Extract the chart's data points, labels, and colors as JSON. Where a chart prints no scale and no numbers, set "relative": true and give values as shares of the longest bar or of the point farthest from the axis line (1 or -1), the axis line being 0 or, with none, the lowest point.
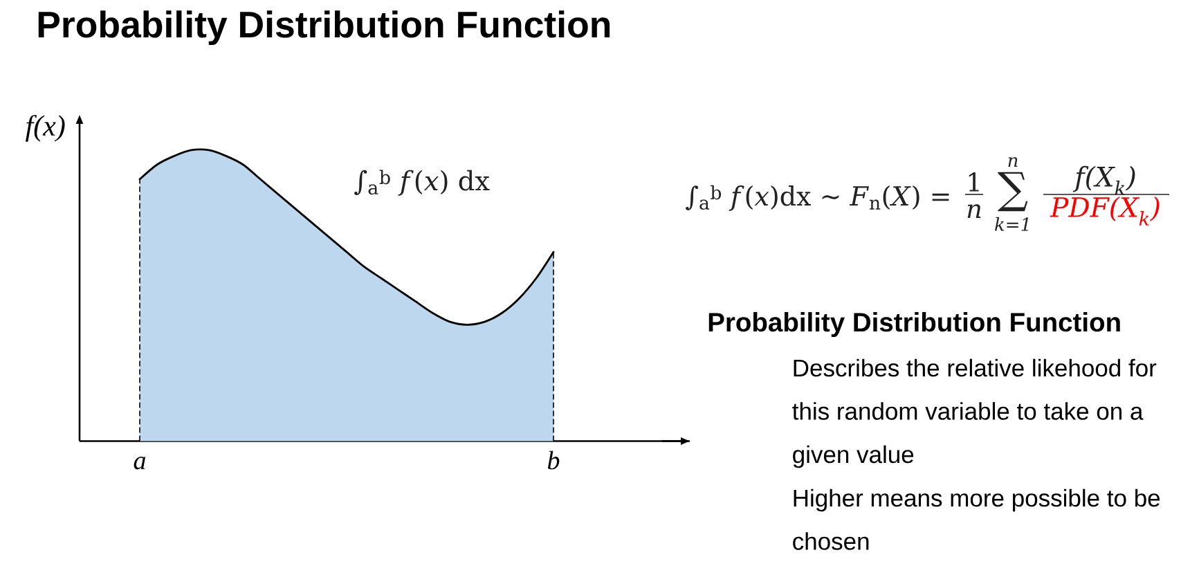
{
  "chart_data": {
    "type": "area",
    "title": "Probability Distribution Function",
    "ylabel": "f(x)",
    "relative": true,
    "color": "#bdd7ee",
    "categories": [
      "a",
      null,
      null,
      null,
      null,
      null,
      null,
      null,
      null,
      null,
      null,
      null,
      null,
      null,
      null,
      null,
      null,
      null,
      null,
      null,
      null,
      null,
      null,
      null,
      "b"
    ],
    "values": [
      0.9,
      0.95,
      0.98,
      1.0,
      1.0,
      0.98,
      0.95,
      0.9,
      0.85,
      0.8,
      0.75,
      0.7,
      0.65,
      0.6,
      0.56,
      0.52,
      0.48,
      0.44,
      0.41,
      0.4,
      0.41,
      0.44,
      0.49,
      0.56,
      0.65
    ],
    "annotations": [
      "∫$_{a}$$^{b}$ *f*(*x*) dx",
      "∫$_{a}$$^{b}$ *f*(*x*)dx ∼ *F*$_{n}$(*X*) =",
      "1",
      "n",
      "n",
      "∑",
      "k=1",
      "f(X$_{k}$)",
      "PDF(X$_{k}$)",
      "Probability Distribution Function",
      "Describes the relative likehood for this random variable to take on a given value",
      "Higher means more possible to be chosen"
    ]
  }
}
